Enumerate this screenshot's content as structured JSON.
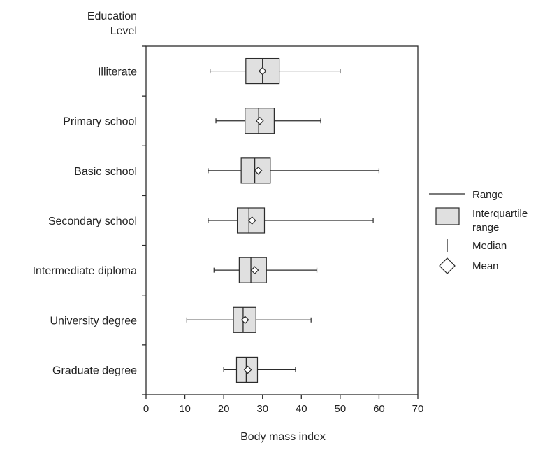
{
  "chart_data": {
    "type": "boxplot",
    "orientation": "horizontal",
    "ylabel": [
      "Education",
      "Level"
    ],
    "xlabel": "Body mass index",
    "xlim": [
      0,
      70
    ],
    "xticks": [
      0,
      10,
      20,
      30,
      40,
      50,
      60,
      70
    ],
    "categories": [
      "Illiterate",
      "Primary school",
      "Basic school",
      "Secondary school",
      "Intermediate diploma",
      "University degree",
      "Graduate degree"
    ],
    "boxes": [
      {
        "category": "Illiterate",
        "min": 16.5,
        "q1": 25.7,
        "median": 30.0,
        "q3": 34.3,
        "max": 50.0,
        "mean": 30.0
      },
      {
        "category": "Primary school",
        "min": 18.0,
        "q1": 25.5,
        "median": 29.0,
        "q3": 33.0,
        "max": 45.0,
        "mean": 29.3
      },
      {
        "category": "Basic school",
        "min": 16.0,
        "q1": 24.5,
        "median": 28.0,
        "q3": 32.0,
        "max": 60.0,
        "mean": 28.9
      },
      {
        "category": "Secondary school",
        "min": 16.0,
        "q1": 23.5,
        "median": 26.5,
        "q3": 30.5,
        "max": 58.5,
        "mean": 27.3
      },
      {
        "category": "Intermediate diploma",
        "min": 17.5,
        "q1": 24.0,
        "median": 27.0,
        "q3": 31.0,
        "max": 44.0,
        "mean": 28.0
      },
      {
        "category": "University degree",
        "min": 10.5,
        "q1": 22.5,
        "median": 25.0,
        "q3": 28.3,
        "max": 42.5,
        "mean": 25.5
      },
      {
        "category": "Graduate degree",
        "min": 20.0,
        "q1": 23.3,
        "median": 25.8,
        "q3": 28.7,
        "max": 38.5,
        "mean": 26.2
      }
    ],
    "legend": {
      "position": "right",
      "items": [
        {
          "name": "Range",
          "symbol": "line"
        },
        {
          "name": "Interquartile range",
          "lines": [
            "Interquartile",
            "range"
          ],
          "symbol": "box"
        },
        {
          "name": "Median",
          "symbol": "vertical-tick"
        },
        {
          "name": "Mean",
          "symbol": "diamond"
        }
      ]
    },
    "colors": {
      "box_fill": "#e0e0e0",
      "stroke": "#2b2b2b"
    },
    "grid": false
  }
}
